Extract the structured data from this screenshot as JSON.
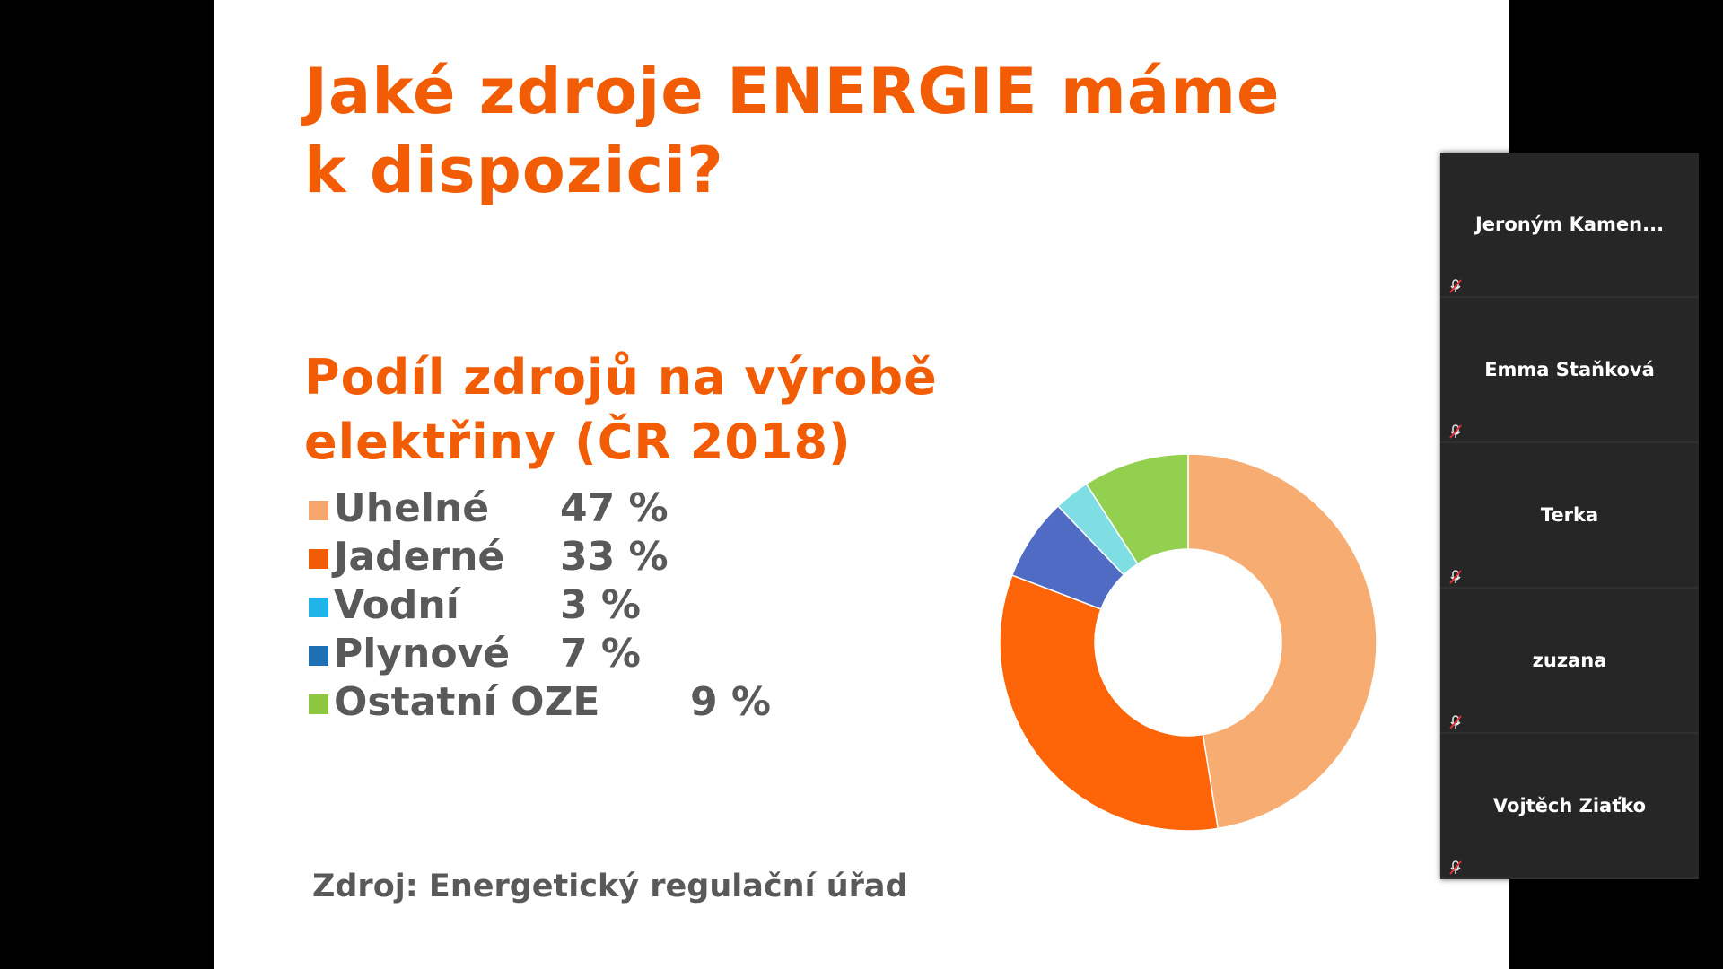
{
  "slide": {
    "title_lines": [
      "Jaké zdroje ENERGIE máme",
      "k dispozici?"
    ],
    "subtitle_lines": [
      "Podíl zdrojů na výrobě",
      "elektřiny (ČR 2018)"
    ],
    "source": "Zdroj: Energetický regulační úřad"
  },
  "legend": [
    {
      "label": "Uhelné",
      "value": "47 %",
      "color": "#f7a76b"
    },
    {
      "label": "Jaderné",
      "value": "33 %",
      "color": "#f25c05"
    },
    {
      "label": "Vodní",
      "value": "3 %",
      "color": "#1eb4e8"
    },
    {
      "label": "Plynové",
      "value": "7 %",
      "color": "#1f6fb5"
    },
    {
      "label": "Ostatní OZE",
      "value": "9 %",
      "color": "#8dc63f"
    }
  ],
  "chart_data": {
    "type": "pie",
    "variant": "donut",
    "categories": [
      "Uhelné",
      "Jaderné",
      "Plynové",
      "Vodní",
      "Ostatní OZE"
    ],
    "values": [
      47,
      33,
      7,
      3,
      9
    ],
    "colors": [
      "#f7ad72",
      "#fe6408",
      "#4f6bc4",
      "#7fdde4",
      "#93d04f"
    ],
    "title": "",
    "legend": "left"
  },
  "participants": [
    {
      "name": "Jeroným  Kamen...",
      "mic": "mic-muted-icon"
    },
    {
      "name": "Emma Staňková",
      "mic": "mic-muted-icon"
    },
    {
      "name": "Terka",
      "mic": "mic-muted-icon"
    },
    {
      "name": "zuzana",
      "mic": "mic-muted-icon"
    },
    {
      "name": "Vojtěch Ziaťko",
      "mic": "mic-muted-icon"
    }
  ]
}
